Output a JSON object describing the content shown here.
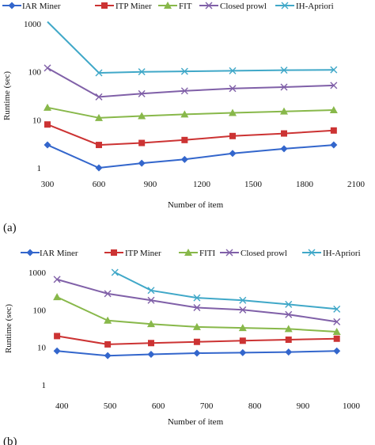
{
  "chart_data": [
    {
      "panel_label": "(a)",
      "type": "line",
      "yscale": "log",
      "xlabel": "Number of item",
      "ylabel": "Runtime (sec)",
      "xticks": [
        "300",
        "600",
        "900",
        "1200",
        "1500",
        "1800",
        "2100"
      ],
      "yticks": [
        "1",
        "10",
        "100",
        "1000"
      ],
      "xlim": [
        300,
        2100
      ],
      "ylim": [
        1,
        1000
      ],
      "legend_position": "top",
      "series": [
        {
          "name": "IAR Miner",
          "color": "#3366cc",
          "marker": "diamond",
          "x": [
            300,
            600,
            850,
            1100,
            1380,
            1680,
            1970
          ],
          "y": [
            3,
            1,
            1.25,
            1.5,
            2,
            2.5,
            3
          ]
        },
        {
          "name": "ITP Miner",
          "color": "#cc3333",
          "marker": "square",
          "x": [
            300,
            600,
            850,
            1100,
            1380,
            1680,
            1970
          ],
          "y": [
            8,
            3,
            3.3,
            3.8,
            4.6,
            5.2,
            6
          ]
        },
        {
          "name": "FIT",
          "color": "#88b84a",
          "marker": "triangle",
          "x": [
            300,
            600,
            850,
            1100,
            1380,
            1680,
            1970
          ],
          "y": [
            18,
            11,
            12,
            13,
            14,
            15,
            16
          ]
        },
        {
          "name": "Closed prowl",
          "color": "#8060a8",
          "marker": "x",
          "x": [
            300,
            600,
            850,
            1100,
            1380,
            1680,
            1970
          ],
          "y": [
            120,
            30,
            35,
            40,
            45,
            48,
            52
          ]
        },
        {
          "name": "IH-Apriori",
          "color": "#40a8c8",
          "marker": "x",
          "x": [
            300,
            600,
            850,
            1100,
            1380,
            1680,
            1970
          ],
          "y": [
            1100,
            95,
            100,
            102,
            105,
            108,
            110
          ]
        }
      ]
    },
    {
      "panel_label": "(b)",
      "type": "line",
      "yscale": "log",
      "xlabel": "Number of item",
      "ylabel": "Runtime (sec)",
      "xticks": [
        "400",
        "500",
        "600",
        "700",
        "800",
        "900",
        "1000"
      ],
      "yticks": [
        "1",
        "10",
        "100",
        "1000"
      ],
      "xlim": [
        380,
        1000
      ],
      "ylim": [
        1,
        1000
      ],
      "legend_position": "top",
      "series": [
        {
          "name": "IAR Miner",
          "color": "#3366cc",
          "marker": "diamond",
          "x": [
            390,
            495,
            585,
            680,
            775,
            870,
            970
          ],
          "y": [
            8,
            6,
            6.5,
            7,
            7.2,
            7.5,
            8
          ]
        },
        {
          "name": "ITP Miner",
          "color": "#cc3333",
          "marker": "square",
          "x": [
            390,
            495,
            585,
            680,
            775,
            870,
            970
          ],
          "y": [
            20,
            12,
            13,
            14,
            15,
            16,
            17
          ]
        },
        {
          "name": "FITI",
          "color": "#88b84a",
          "marker": "triangle",
          "x": [
            390,
            495,
            585,
            680,
            775,
            870,
            970
          ],
          "y": [
            220,
            52,
            42,
            35,
            33,
            31,
            26
          ]
        },
        {
          "name": "Closed prowl",
          "color": "#8060a8",
          "marker": "x",
          "x": [
            390,
            495,
            585,
            680,
            775,
            870,
            970
          ],
          "y": [
            650,
            270,
            180,
            115,
            100,
            75,
            48
          ]
        },
        {
          "name": "IH-Apriori",
          "color": "#40a8c8",
          "marker": "x",
          "x": [
            510,
            585,
            680,
            775,
            870,
            970
          ],
          "y": [
            1000,
            330,
            210,
            180,
            140,
            105
          ]
        }
      ]
    }
  ]
}
